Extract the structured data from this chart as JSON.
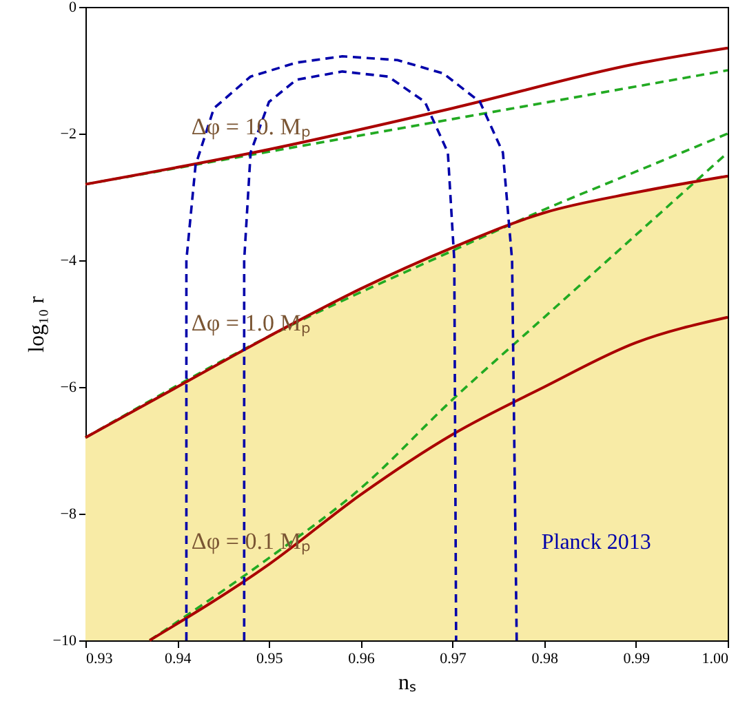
{
  "chart_data": {
    "type": "line",
    "xlabel": "nₛ",
    "ylabel": "log₁₀ r",
    "xlim": [
      0.93,
      1.0
    ],
    "ylim": [
      -10,
      0
    ],
    "xticks": [
      0.93,
      0.94,
      0.95,
      0.96,
      0.97,
      0.98,
      0.99,
      {
        "value": 1.0,
        "label": "1.00"
      }
    ],
    "yticks": [
      -10,
      -8,
      -6,
      -4,
      -2,
      0
    ],
    "grid": false,
    "series": [
      {
        "color": "#22aa22",
        "line_style": "dashed",
        "x": [
          0.93,
          1.0
        ],
        "values": [
          -2.8,
          -1.0
        ]
      },
      {
        "type": "line",
        "color": "#22aa22",
        "line_style": "dashed",
        "x": [
          0.93,
          0.95,
          0.97,
          0.98,
          0.99,
          1.0
        ],
        "values": [
          -6.8,
          -5.2,
          -3.85,
          -3.2,
          -2.6,
          -2.0
        ]
      },
      {
        "type": "line",
        "color": "#22aa22",
        "line_style": "dashed",
        "x": [
          0.937,
          0.95,
          0.96,
          0.97,
          0.98,
          0.99,
          1.0
        ],
        "values": [
          -10,
          -8.7,
          -7.6,
          -6.2,
          -4.9,
          -3.6,
          -2.3
        ]
      },
      {
        "type": "line",
        "color": "#aa0000",
        "line_style": "solid",
        "x": [
          0.93,
          0.95,
          0.97,
          0.99,
          1.0
        ],
        "values": [
          -2.8,
          -2.25,
          -1.6,
          -0.9,
          -0.65
        ]
      },
      {
        "type": "line",
        "color": "#aa0000",
        "line_style": "solid",
        "x": [
          0.93,
          0.94,
          0.95,
          0.96,
          0.97,
          0.98,
          0.99,
          1.0
        ],
        "values": [
          -6.8,
          -6.0,
          -5.2,
          -4.45,
          -3.8,
          -3.25,
          -2.93,
          -2.67
        ],
        "lower": [
          -10,
          -10,
          -10,
          -10,
          -10,
          -10,
          -10,
          -10
        ],
        "upper": [
          -6.8,
          -6.0,
          -5.2,
          -4.45,
          -3.8,
          -3.25,
          -2.93,
          -2.67
        ]
      },
      {
        "type": "line",
        "color": "#aa0000",
        "line_style": "solid",
        "x": [
          0.937,
          0.95,
          0.96,
          0.97,
          0.98,
          0.99,
          1.0
        ],
        "values": [
          -10,
          -8.8,
          -7.7,
          -6.75,
          -6.0,
          -5.3,
          -4.9
        ]
      },
      {
        "type": "line",
        "color": "#0000aa",
        "line_style": "dashed",
        "x": [
          0.941,
          0.941,
          0.942,
          0.944,
          0.948,
          0.953,
          0.958,
          0.964,
          0.969,
          0.973,
          0.9755,
          0.9765,
          0.977
        ],
        "values": [
          -10,
          -4,
          -2.5,
          -1.6,
          -1.1,
          -0.88,
          -0.78,
          -0.84,
          -1.05,
          -1.5,
          -2.3,
          -4,
          -10
        ]
      },
      {
        "type": "line",
        "color": "#0000aa",
        "line_style": "dashed",
        "x": [
          0.9473,
          0.9473,
          0.948,
          0.95,
          0.953,
          0.958,
          0.963,
          0.967,
          0.9695,
          0.9702,
          0.9704
        ],
        "values": [
          -10,
          -4,
          -2.3,
          -1.5,
          -1.15,
          -1.02,
          -1.1,
          -1.5,
          -2.3,
          -4,
          -10
        ]
      }
    ],
    "annotations": [
      "Δφ = 10. Mₚ",
      "Δφ = 1.0 Mₚ",
      "Δφ = 0.1 Mₚ",
      "Planck 2013"
    ]
  }
}
